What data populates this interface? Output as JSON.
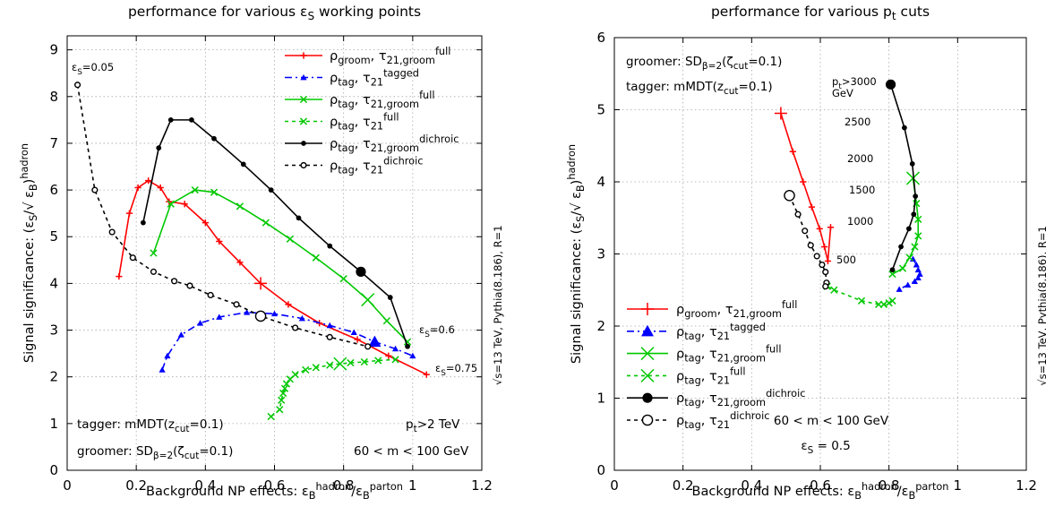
{
  "chart_data": [
    {
      "type": "line",
      "title": "performance for various εS working points",
      "xlabel": "Background NP effects: εBhadron/εBparton",
      "ylabel": "Signal significance: (εS/√ εB)hadron",
      "xlim": [
        0,
        1.2
      ],
      "ylim": [
        0,
        9.3
      ],
      "xticks": [
        "0",
        "0.2",
        "0.4",
        "0.6",
        "0.8",
        "1",
        "1.2"
      ],
      "yticks": [
        "0",
        "1",
        "2",
        "3",
        "4",
        "5",
        "6",
        "7",
        "8",
        "9"
      ],
      "grid": true,
      "legend_position": "top-right",
      "side_label": "√s=13 TeV, Pythia(8.186), R=1",
      "annotations": {
        "eps_start": "εS=0.05",
        "eps_mid": "εS=0.6",
        "eps_end": "εS=0.75",
        "tagger": "tagger: mMDT(zcut=0.1)",
        "groomer": "groomer: SDβ=2(ζcut=0.1)",
        "pt": "pt>2 TeV",
        "mass": "60 < m < 100 GeV"
      },
      "series": [
        {
          "name": "ρgroom, τ21,groomfull",
          "color": "#ff0000",
          "dash": "",
          "marker": "plus",
          "x": [
            0.15,
            0.18,
            0.205,
            0.235,
            0.27,
            0.295,
            0.34,
            0.4,
            0.44,
            0.5,
            0.56,
            0.64,
            0.73,
            0.84,
            0.93,
            1.04
          ],
          "y": [
            4.15,
            5.5,
            6.05,
            6.2,
            6.05,
            5.75,
            5.7,
            5.3,
            4.9,
            4.45,
            4.0,
            3.55,
            3.15,
            2.8,
            2.45,
            2.05
          ],
          "highlight_index": 10
        },
        {
          "name": "ρtag, τ21tagged",
          "color": "#0000ff",
          "dash": "8 4 2 4",
          "marker": "triangle",
          "x": [
            0.275,
            0.29,
            0.33,
            0.385,
            0.44,
            0.52,
            0.6,
            0.68,
            0.76,
            0.83,
            0.89,
            0.95,
            1.0
          ],
          "y": [
            2.15,
            2.45,
            2.9,
            3.15,
            3.28,
            3.38,
            3.35,
            3.25,
            3.1,
            2.95,
            2.75,
            2.6,
            2.45
          ],
          "highlight_index": 10
        },
        {
          "name": "ρtag, τ21,groomfull",
          "color": "#00c800",
          "dash": "",
          "marker": "x",
          "x": [
            0.25,
            0.3,
            0.37,
            0.425,
            0.5,
            0.575,
            0.645,
            0.72,
            0.8,
            0.87,
            0.925,
            0.985
          ],
          "y": [
            4.65,
            5.7,
            6.0,
            5.95,
            5.65,
            5.3,
            4.95,
            4.55,
            4.1,
            3.65,
            3.2,
            2.75
          ],
          "highlight_index": 9
        },
        {
          "name": "ρtag, τ21full",
          "color": "#00c800",
          "dash": "4 4",
          "marker": "x",
          "x": [
            0.59,
            0.615,
            0.62,
            0.625,
            0.63,
            0.635,
            0.645,
            0.66,
            0.69,
            0.72,
            0.76,
            0.79,
            0.82,
            0.86,
            0.9,
            0.95
          ],
          "y": [
            1.15,
            1.3,
            1.5,
            1.65,
            1.75,
            1.85,
            1.95,
            2.05,
            2.15,
            2.2,
            2.25,
            2.28,
            2.3,
            2.32,
            2.35,
            2.37
          ],
          "highlight_index": 11
        },
        {
          "name": "ρtag, τ21,groomdichroic",
          "color": "#000000",
          "dash": "",
          "marker": "dot",
          "x": [
            0.22,
            0.265,
            0.3,
            0.36,
            0.425,
            0.51,
            0.59,
            0.67,
            0.76,
            0.85,
            0.935,
            0.985
          ],
          "y": [
            5.3,
            6.9,
            7.5,
            7.5,
            7.1,
            6.55,
            6.0,
            5.4,
            4.8,
            4.25,
            3.7,
            2.65
          ],
          "highlight_index": 9
        },
        {
          "name": "ρtag, τ21dichroic",
          "color": "#000000",
          "dash": "4 4",
          "marker": "circle",
          "x": [
            0.03,
            0.08,
            0.13,
            0.19,
            0.25,
            0.31,
            0.355,
            0.415,
            0.49,
            0.56,
            0.66,
            0.76,
            0.87
          ],
          "y": [
            8.25,
            6.0,
            5.1,
            4.55,
            4.25,
            4.05,
            3.95,
            3.75,
            3.55,
            3.3,
            3.05,
            2.85,
            2.65
          ],
          "highlight_index": 9
        }
      ]
    },
    {
      "type": "line",
      "title": "performance for various pt cuts",
      "xlabel": "Background NP effects: εBhadron/εBparton",
      "ylabel": "Signal significance: (εS/√ εB)hadron",
      "xlim": [
        0,
        1.2
      ],
      "ylim": [
        0,
        6
      ],
      "xticks": [
        "0",
        "0.2",
        "0.4",
        "0.6",
        "0.8",
        "1",
        "1.2"
      ],
      "yticks": [
        "0",
        "1",
        "2",
        "3",
        "4",
        "5",
        "6"
      ],
      "grid": true,
      "legend_position": "bottom-left",
      "side_label": "√s=13 TeV, Pythia(8.186), R=1",
      "annotations": {
        "groomer": "groomer: SDβ=2(ζcut=0.1)",
        "tagger": "tagger: mMDT(zcut=0.1)",
        "mass": "60 < m < 100 GeV",
        "eps": "εS = 0.5"
      },
      "pt_labels": {
        "top1": "pt>3000",
        "top2": "GeV",
        "list": [
          "2500",
          "2000",
          "1500",
          "1000",
          "500"
        ]
      },
      "series": [
        {
          "name": "ρgroom, τ21,groomfull",
          "color": "#ff0000",
          "dash": "",
          "marker": "plus",
          "big_marker_first": true,
          "x": [
            0.485,
            0.52,
            0.55,
            0.575,
            0.598,
            0.612,
            0.622,
            0.63
          ],
          "y": [
            4.95,
            4.42,
            4.0,
            3.65,
            3.35,
            3.1,
            2.9,
            3.37
          ]
        },
        {
          "name": "ρtag, τ21tagged",
          "color": "#0000ff",
          "dash": "8 4 2 4",
          "marker": "triangle",
          "big_marker_first": false,
          "x": [
            0.87,
            0.88,
            0.885,
            0.89,
            0.885,
            0.875,
            0.855,
            0.83
          ],
          "y": [
            2.93,
            2.85,
            2.78,
            2.72,
            2.67,
            2.62,
            2.57,
            2.51
          ]
        },
        {
          "name": "ρtag, τ21,groomfull",
          "color": "#00c800",
          "dash": "",
          "marker": "x",
          "big_marker_first": true,
          "x": [
            0.87,
            0.88,
            0.885,
            0.885,
            0.875,
            0.86,
            0.84,
            0.81
          ],
          "y": [
            4.05,
            3.7,
            3.48,
            3.25,
            3.1,
            2.95,
            2.8,
            2.72
          ]
        },
        {
          "name": "ρtag, τ21full",
          "color": "#00c800",
          "dash": "4 4",
          "marker": "x",
          "big_marker_first": false,
          "x": [
            0.81,
            0.8,
            0.785,
            0.77,
            0.72,
            0.64,
            0.62
          ],
          "y": [
            2.35,
            2.32,
            2.3,
            2.3,
            2.35,
            2.5,
            2.55
          ]
        },
        {
          "name": "ρtag, τ21,groomdichroic",
          "color": "#000000",
          "dash": "",
          "marker": "dot",
          "big_marker_first": true,
          "x": [
            0.805,
            0.845,
            0.868,
            0.877,
            0.872,
            0.858,
            0.835,
            0.81
          ],
          "y": [
            5.35,
            4.75,
            4.25,
            3.8,
            3.55,
            3.35,
            3.1,
            2.78
          ]
        },
        {
          "name": "ρtag, τ21dichroic",
          "color": "#000000",
          "dash": "4 4",
          "marker": "circle",
          "big_marker_first": true,
          "x": [
            0.51,
            0.535,
            0.555,
            0.572,
            0.59,
            0.605,
            0.615,
            0.618,
            0.615
          ],
          "y": [
            3.81,
            3.55,
            3.32,
            3.12,
            2.97,
            2.85,
            2.75,
            2.6,
            2.55
          ]
        }
      ]
    }
  ]
}
